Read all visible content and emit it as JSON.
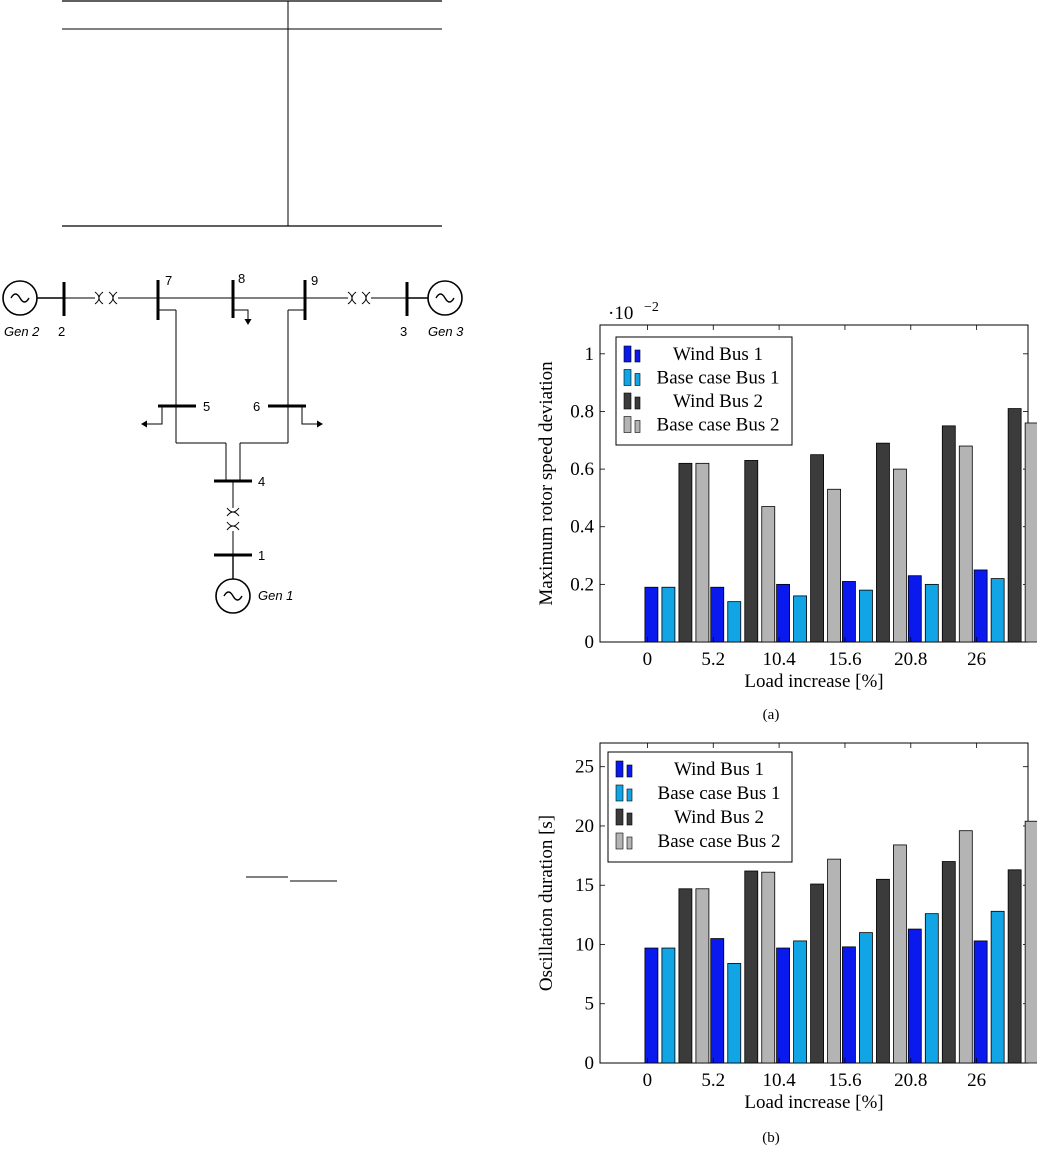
{
  "diagram": {
    "gens": [
      {
        "name": "Gen 2"
      },
      {
        "name": "Gen 3"
      },
      {
        "name": "Gen 1"
      }
    ],
    "buses": [
      "1",
      "2",
      "3",
      "4",
      "5",
      "6",
      "7",
      "8",
      "9"
    ]
  },
  "charts": {
    "a": {
      "caption": "(a)"
    },
    "b": {
      "caption": "(b)"
    }
  },
  "chart_data": [
    {
      "type": "bar",
      "categories": [
        "0",
        "5.2",
        "10.4",
        "15.6",
        "20.8",
        "26"
      ],
      "series": [
        {
          "name": "Wind Bus 1",
          "values": [
            0.19,
            0.19,
            0.2,
            0.21,
            0.23,
            0.25
          ],
          "color": "#0a1aee"
        },
        {
          "name": "Base case Bus 1",
          "values": [
            0.19,
            0.14,
            0.16,
            0.18,
            0.2,
            0.22
          ],
          "color": "#12a5e6"
        },
        {
          "name": "Wind Bus 2",
          "values": [
            0.62,
            0.63,
            0.65,
            0.69,
            0.75,
            0.81
          ],
          "color": "#3b3b3b"
        },
        {
          "name": "Base case Bus 2",
          "values": [
            0.62,
            0.47,
            0.53,
            0.6,
            0.68,
            0.76
          ],
          "color": "#b4b4b4"
        }
      ],
      "xlabel": "Load increase [%]",
      "ylabel": "Maximum rotor speed deviation",
      "ylim": [
        0,
        1.1
      ],
      "yticks": [
        "0",
        "0.2",
        "0.4",
        "0.6",
        "0.8",
        "1"
      ],
      "scale_label": "·10",
      "scale_exp": "−2",
      "legend_position": "top-left",
      "caption": "(a)"
    },
    {
      "type": "bar",
      "categories": [
        "0",
        "5.2",
        "10.4",
        "15.6",
        "20.8",
        "26"
      ],
      "series": [
        {
          "name": "Wind Bus 1",
          "values": [
            9.7,
            10.5,
            9.7,
            9.8,
            11.3,
            10.3
          ],
          "color": "#0a1aee"
        },
        {
          "name": "Base case Bus 1",
          "values": [
            9.7,
            8.4,
            10.3,
            11.0,
            12.6,
            12.8
          ],
          "color": "#12a5e6"
        },
        {
          "name": "Wind Bus 2",
          "values": [
            14.7,
            16.2,
            15.1,
            15.5,
            17.0,
            16.3
          ],
          "color": "#3b3b3b"
        },
        {
          "name": "Base case Bus 2",
          "values": [
            14.7,
            16.1,
            17.2,
            18.4,
            19.6,
            20.4
          ],
          "color": "#b4b4b4"
        }
      ],
      "xlabel": "Load increase [%]",
      "ylabel": "Oscillation duration [s]",
      "ylim": [
        0,
        27
      ],
      "yticks": [
        "0",
        "5",
        "10",
        "15",
        "20",
        "25"
      ],
      "legend_position": "top-left",
      "caption": "(b)"
    }
  ]
}
